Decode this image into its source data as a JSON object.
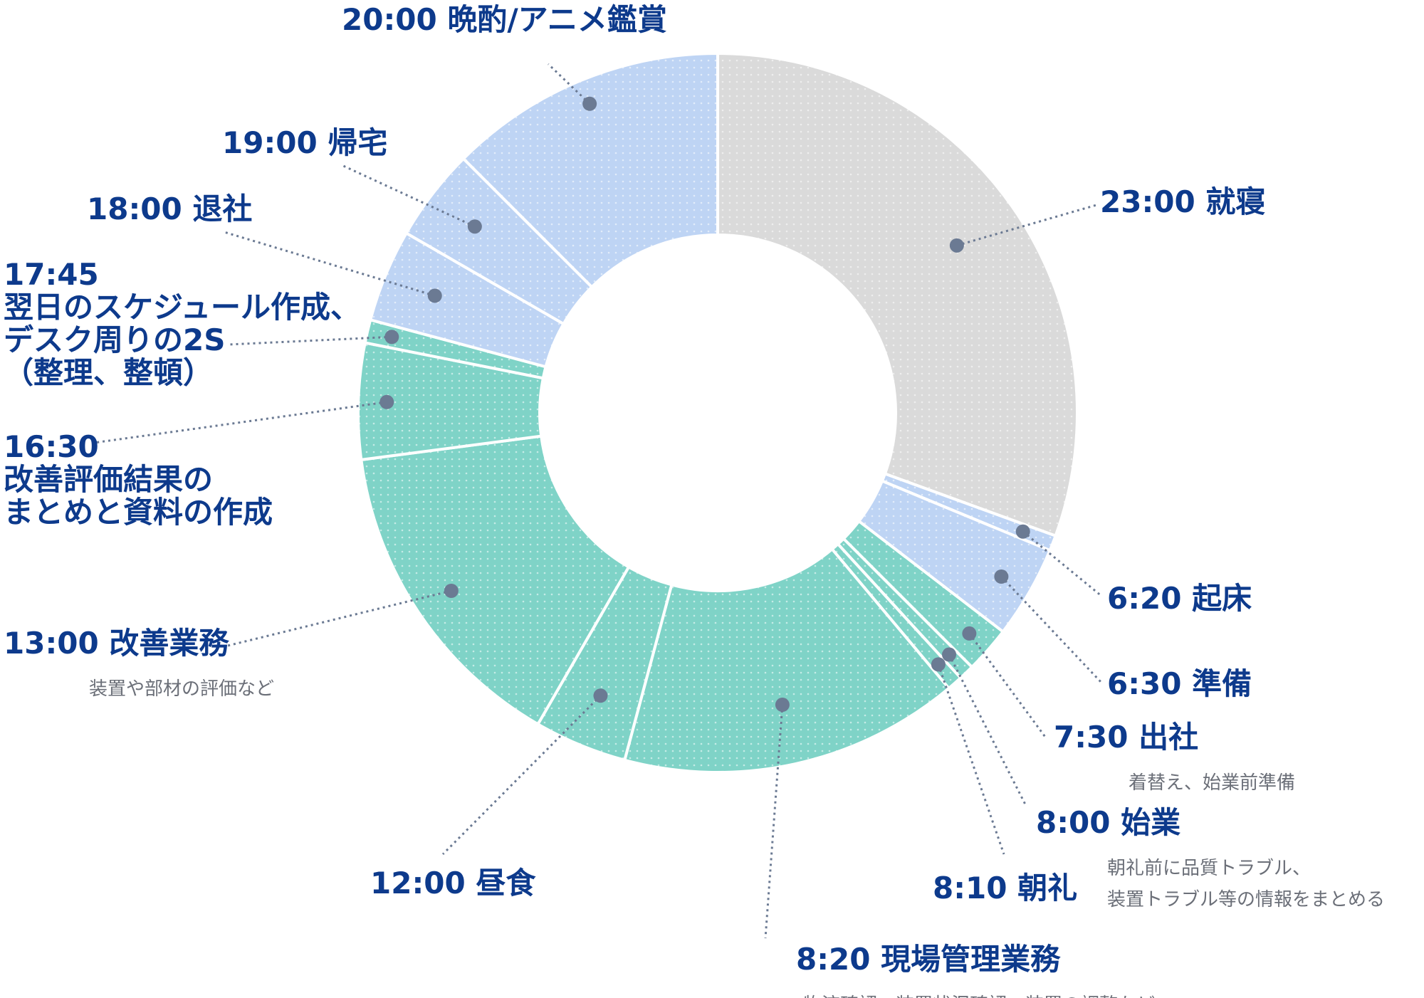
{
  "chart_data": {
    "type": "donut",
    "title": "",
    "unit": "minutes",
    "colors": {
      "sleep": "#dadada",
      "home": "#bed4f4",
      "work": "#7fd3c7",
      "dots": "#ffffff"
    },
    "slices": [
      {
        "time": "23:00",
        "title": "就寝",
        "minutes": 440,
        "group": "sleep",
        "detail": []
      },
      {
        "time": "6:20",
        "title": "起床",
        "minutes": 10,
        "group": "home",
        "detail": []
      },
      {
        "time": "6:30",
        "title": "準備",
        "minutes": 60,
        "group": "home",
        "detail": []
      },
      {
        "time": "7:30",
        "title": "出社",
        "minutes": 30,
        "group": "work",
        "detail": [
          "着替え、始業前準備"
        ]
      },
      {
        "time": "8:00",
        "title": "始業",
        "minutes": 10,
        "group": "work",
        "detail": [
          "朝礼前に品質トラブル、",
          "装置トラブル等の情報をまとめる"
        ]
      },
      {
        "time": "8:10",
        "title": "朝礼",
        "minutes": 10,
        "group": "work",
        "detail": []
      },
      {
        "time": "8:20",
        "title": "現場管理業務",
        "minutes": 220,
        "group": "work",
        "detail": [
          "物流確認、装置状況確認、装置の調整など"
        ]
      },
      {
        "time": "12:00",
        "title": "昼食",
        "minutes": 60,
        "group": "work",
        "detail": []
      },
      {
        "time": "13:00",
        "title": "改善業務",
        "minutes": 210,
        "group": "work",
        "detail": [
          "装置や部材の評価など"
        ]
      },
      {
        "time": "16:30",
        "title": "改善評価結果のまとめと資料の作成",
        "minutes": 75,
        "group": "work",
        "detail": []
      },
      {
        "time": "17:45",
        "title": "翌日のスケジュール作成、デスク周りの2S（整理、整頓）",
        "minutes": 15,
        "group": "work",
        "detail": []
      },
      {
        "time": "18:00",
        "title": "退社",
        "minutes": 60,
        "group": "home",
        "detail": []
      },
      {
        "time": "19:00",
        "title": "帰宅",
        "minutes": 60,
        "group": "home",
        "detail": []
      },
      {
        "time": "20:00",
        "title": "晩酌/アニメ鑑賞",
        "minutes": 180,
        "group": "home",
        "detail": []
      }
    ]
  },
  "labels": [
    {
      "lines": [
        "23:00 就寝"
      ],
      "sub": []
    },
    {
      "lines": [
        "6:20 起床"
      ],
      "sub": []
    },
    {
      "lines": [
        "6:30 準備"
      ],
      "sub": []
    },
    {
      "lines": [
        "7:30 出社"
      ],
      "sub": [
        "着替え、始業前準備"
      ]
    },
    {
      "lines": [
        "8:00 始業"
      ],
      "sub": [
        "朝礼前に品質トラブル、",
        "装置トラブル等の情報をまとめる"
      ]
    },
    {
      "lines": [
        "8:10 朝礼"
      ],
      "sub": []
    },
    {
      "lines": [
        "8:20 現場管理業務"
      ],
      "sub": [
        "物流確認、装置状況確認、装置の調整など"
      ]
    },
    {
      "lines": [
        "12:00 昼食"
      ],
      "sub": []
    },
    {
      "lines": [
        "13:00 改善業務"
      ],
      "sub": [
        "装置や部材の評価など"
      ]
    },
    {
      "lines": [
        "16:30",
        "改善評価結果の",
        "まとめと資料の作成"
      ],
      "sub": []
    },
    {
      "lines": [
        "17:45",
        "翌日のスケジュール作成、",
        "デスク周りの2S",
        "（整理、整頓）"
      ],
      "sub": []
    },
    {
      "lines": [
        "18:00 退社"
      ],
      "sub": []
    },
    {
      "lines": [
        "19:00 帰宅"
      ],
      "sub": []
    },
    {
      "lines": [
        "20:00 晩酌/アニメ鑑賞"
      ],
      "sub": []
    }
  ]
}
